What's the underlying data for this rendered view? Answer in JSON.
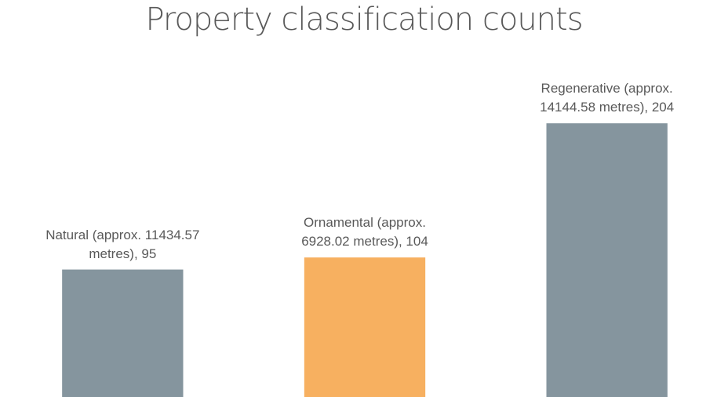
{
  "chart_data": {
    "type": "bar",
    "title": "Property classification counts",
    "values": [
      95,
      104,
      204
    ],
    "value_labels": [
      "Natural (approx. 11434.57 metres), 95",
      "Ornamental (approx. 6928.02 metres), 104",
      "Regenerative (approx. 14144.58 metres), 204"
    ],
    "colors": [
      "#85959e",
      "#f7b060",
      "#85959e"
    ],
    "ylim": [
      0,
      250
    ]
  }
}
